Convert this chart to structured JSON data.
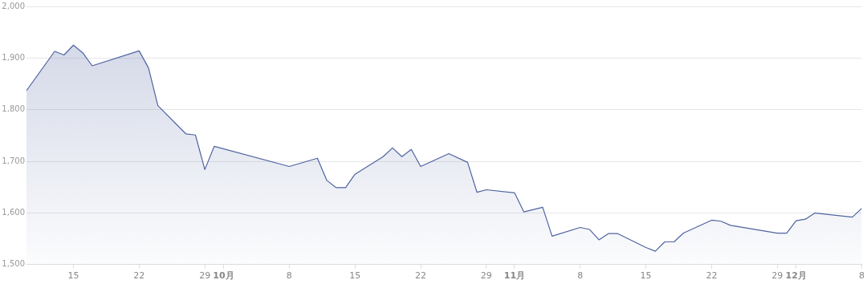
{
  "chart_data": {
    "type": "area",
    "color": "#4f63a0",
    "x": [
      "--09-10",
      "--09-13",
      "--09-14",
      "--09-15",
      "--09-16",
      "--09-17",
      "--09-22",
      "--09-23",
      "--09-24",
      "--09-27",
      "--09-28",
      "--09-29",
      "--09-30",
      "--10-08",
      "--10-11",
      "--10-12",
      "--10-13",
      "--10-14",
      "--10-15",
      "--10-18",
      "--10-19",
      "--10-20",
      "--10-21",
      "--10-22",
      "--10-25",
      "--10-27",
      "--10-28",
      "--10-29",
      "--11-01",
      "--11-02",
      "--11-04",
      "--11-05",
      "--11-08",
      "--11-09",
      "--11-10",
      "--11-11",
      "--11-12",
      "--11-15",
      "--11-16",
      "--11-17",
      "--11-18",
      "--11-19",
      "--11-22",
      "--11-23",
      "--11-24",
      "--11-29",
      "--11-30",
      "--12-01",
      "--12-02",
      "--12-03",
      "--12-07",
      "--12-08"
    ],
    "values": [
      1837,
      1913,
      1906,
      1925,
      1910,
      1885,
      1914,
      1881,
      1808,
      1753,
      1751,
      1684,
      1729,
      1690,
      1706,
      1663,
      1649,
      1649,
      1675,
      1709,
      1726,
      1709,
      1723,
      1690,
      1715,
      1698,
      1640,
      1645,
      1639,
      1602,
      1611,
      1555,
      1572,
      1568,
      1548,
      1560,
      1560,
      1533,
      1526,
      1544,
      1544,
      1561,
      1586,
      1584,
      1576,
      1561,
      1561,
      1585,
      1588,
      1600,
      1592,
      1609
    ],
    "xlim": [
      "--09-10",
      "--12-08"
    ],
    "xticks": [
      {
        "value": "--09-15",
        "label": "15"
      },
      {
        "value": "--09-22",
        "label": "22"
      },
      {
        "value": "--09-29",
        "label": "29"
      },
      {
        "value": "--10-01",
        "label": "10月"
      },
      {
        "value": "--10-08",
        "label": "8"
      },
      {
        "value": "--10-15",
        "label": "15"
      },
      {
        "value": "--10-22",
        "label": "22"
      },
      {
        "value": "--10-29",
        "label": "29"
      },
      {
        "value": "--11-01",
        "label": "11月"
      },
      {
        "value": "--11-08",
        "label": "8"
      },
      {
        "value": "--11-15",
        "label": "15"
      },
      {
        "value": "--11-22",
        "label": "22"
      },
      {
        "value": "--11-29",
        "label": "29"
      },
      {
        "value": "--12-01",
        "label": "12月"
      },
      {
        "value": "--12-08",
        "label": "8"
      }
    ],
    "ylim": [
      1500,
      2000
    ],
    "yticks": [
      {
        "value": 1500,
        "label": "1,500"
      },
      {
        "value": 1600,
        "label": "1,600"
      },
      {
        "value": 1700,
        "label": "1,700"
      },
      {
        "value": 1800,
        "label": "1,800"
      },
      {
        "value": 1900,
        "label": "1,900"
      },
      {
        "value": 2000,
        "label": "2,000"
      }
    ],
    "grid": "y"
  }
}
